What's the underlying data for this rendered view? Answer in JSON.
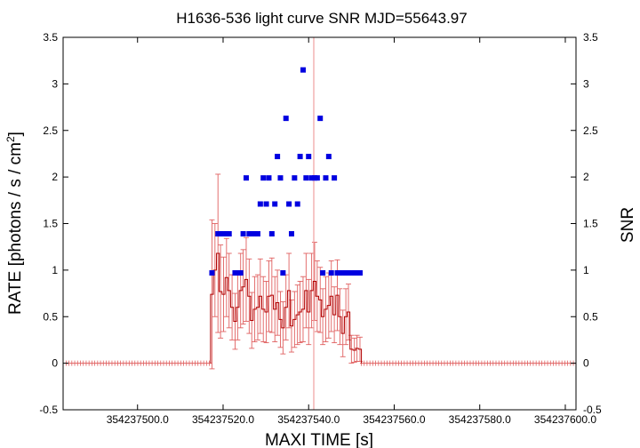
{
  "chart_data": {
    "type": "scatter",
    "title": "H1636-536 light curve  SNR MJD=55643.97",
    "xlabel": "MAXI TIME [s]",
    "ylabel": "RATE [photons / s / cm",
    "ylabel_sup": "2",
    "ylabel_close": "]",
    "y2label": "SNR",
    "xlim": [
      354237482.6,
      354237602.5
    ],
    "ylim": [
      -0.5,
      3.5
    ],
    "y2lim": [
      -0.5,
      3.5
    ],
    "x_tick_values": [
      354237500,
      354237520,
      354237540,
      354237560,
      354237580,
      354237600
    ],
    "x_tick_labels": [
      "354237500.0",
      "354237520.0",
      "354237540.0",
      "354237560.0",
      "354237580.0",
      "354237600.0"
    ],
    "y_tick_values": [
      -0.5,
      0,
      0.5,
      1,
      1.5,
      2,
      2.5,
      3,
      3.5
    ],
    "y_tick_labels": [
      "-0.5",
      "0",
      "0.5",
      "1",
      "1.5",
      "2",
      "2.5",
      "3",
      "3.5"
    ],
    "y2_tick_labels": [
      "-0.5",
      "0",
      "0.5",
      "1",
      "1.5",
      "2",
      "2.5",
      "3",
      "3.5"
    ],
    "marker_time": 354237541.2,
    "colors": {
      "rate": "#e06060",
      "snr": "#0000e0",
      "marker": "#f0a0a0",
      "axis": "#000000"
    },
    "series": [
      {
        "key": "rate",
        "x": [
          354237517.4,
          354237518.1,
          354237518.8,
          354237519.4,
          354237520.1,
          354237520.8,
          354237521.4,
          354237522.1,
          354237522.8,
          354237523.4,
          354237524.1,
          354237524.7,
          354237525.4,
          354237526.1,
          354237526.7,
          354237527.4,
          354237528.1,
          354237528.7,
          354237529.4,
          354237530.1,
          354237530.7,
          354237531.4,
          354237532.1,
          354237532.7,
          354237533.4,
          354237534.0,
          354237534.7,
          354237535.4,
          354237536.0,
          354237536.7,
          354237537.4,
          354237538.0,
          354237538.7,
          354237539.4,
          354237540.0,
          354237540.7,
          354237541.4,
          354237542.0,
          354237542.7,
          354237543.3,
          354237544.0,
          354237544.7,
          354237545.3,
          354237546.0,
          354237546.7,
          354237547.3,
          354237548.0,
          354237548.7,
          354237549.3,
          354237550.0,
          354237550.7,
          354237551.3,
          354237552.0
        ],
        "y": [
          0.74,
          1.0,
          1.18,
          0.77,
          0.74,
          0.92,
          0.78,
          0.6,
          0.45,
          0.6,
          0.78,
          0.82,
          0.9,
          0.72,
          0.46,
          0.58,
          0.6,
          0.72,
          0.58,
          0.55,
          0.72,
          0.73,
          0.58,
          0.65,
          0.47,
          0.38,
          0.6,
          0.78,
          0.4,
          0.47,
          0.52,
          0.55,
          0.58,
          0.78,
          0.55,
          0.78,
          0.88,
          0.72,
          0.68,
          0.5,
          0.58,
          0.62,
          0.72,
          0.52,
          0.73,
          0.5,
          0.32,
          0.5,
          0.55,
          0.15,
          0.14,
          0.16,
          0.15
        ],
        "err": [
          0.8,
          0.5,
          0.85,
          0.5,
          0.4,
          0.42,
          0.4,
          0.35,
          0.3,
          0.35,
          0.4,
          0.4,
          0.45,
          0.4,
          0.3,
          0.35,
          0.35,
          0.4,
          0.35,
          0.33,
          0.38,
          0.4,
          0.35,
          0.35,
          0.3,
          0.28,
          0.35,
          0.4,
          0.28,
          0.3,
          0.32,
          0.33,
          0.35,
          0.4,
          0.35,
          0.4,
          0.42,
          0.38,
          0.35,
          0.3,
          0.35,
          0.35,
          0.38,
          0.3,
          0.38,
          0.3,
          0.25,
          0.3,
          0.3,
          0.15,
          0.13,
          0.14,
          0.13
        ],
        "x_start": 354237483.3,
        "x_end": 354237602.5,
        "x_step": 0.67
      },
      {
        "key": "snr",
        "x": [
          354237517.4,
          354237518.8,
          354237519.4,
          354237520.1,
          354237520.8,
          354237521.4,
          354237522.8,
          354237523.4,
          354237524.1,
          354237524.7,
          354237525.4,
          354237526.1,
          354237526.7,
          354237527.4,
          354237528.1,
          354237528.7,
          354237529.4,
          354237530.1,
          354237530.7,
          354237531.4,
          354237532.1,
          354237532.7,
          354237533.4,
          354237534.0,
          354237534.7,
          354237535.4,
          354237536.0,
          354237536.7,
          354237537.4,
          354237538.0,
          354237538.7,
          354237539.4,
          354237540.0,
          354237540.7,
          354237541.4,
          354237542.0,
          354237542.7,
          354237543.3,
          354237544.0,
          354237544.7,
          354237545.3,
          354237546.0,
          354237546.7,
          354237547.3,
          354237548.0,
          354237548.7,
          354237549.3,
          354237550.0,
          354237550.7,
          354237551.3,
          354237552.0
        ],
        "y": [
          0.97,
          1.39,
          1.39,
          1.39,
          1.39,
          1.39,
          0.97,
          0.97,
          0.97,
          1.39,
          1.99,
          1.39,
          1.39,
          1.39,
          1.39,
          1.71,
          1.99,
          1.71,
          1.99,
          1.39,
          1.71,
          2.22,
          1.99,
          0.97,
          2.63,
          1.71,
          1.39,
          1.99,
          1.71,
          2.22,
          3.15,
          1.99,
          2.22,
          1.99,
          1.99,
          1.99,
          2.63,
          0.97,
          1.99,
          2.22,
          0.97,
          1.99,
          0.97,
          0.97,
          0.97,
          0.97,
          0.97,
          0.97,
          0.97,
          0.97,
          0.97
        ]
      }
    ]
  }
}
